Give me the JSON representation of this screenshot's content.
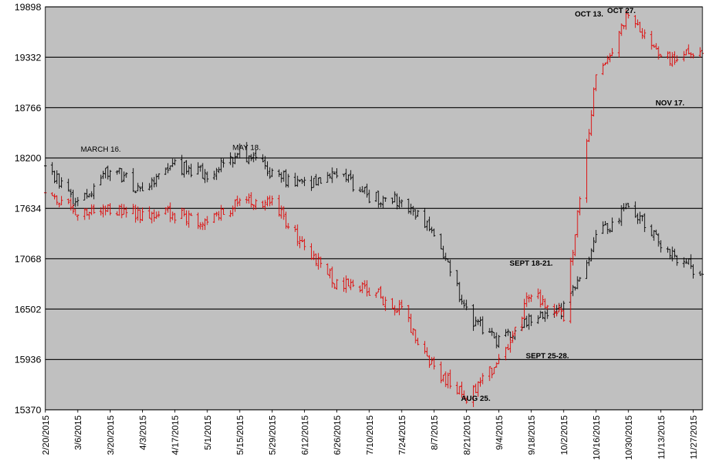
{
  "chart_data": {
    "type": "bar",
    "subtype": "ohlc",
    "title": "",
    "xlabel": "",
    "ylabel": "",
    "ylim": [
      15370,
      19898
    ],
    "y_ticks": [
      "15370",
      "15936",
      "16502",
      "17068",
      "17634",
      "18200",
      "18766",
      "19332",
      "19898"
    ],
    "x_ticks": [
      "2/20/2015",
      "3/6/2015",
      "3/20/2015",
      "4/3/2015",
      "4/17/2015",
      "5/1/2015",
      "5/15/2015",
      "5/29/2015",
      "6/12/2015",
      "6/26/2015",
      "7/10/2015",
      "7/24/2015",
      "8/7/2015",
      "8/21/2015",
      "9/4/2015",
      "9/18/2015",
      "10/2/2015",
      "10/16/2015",
      "10/30/2015",
      "11/13/2015",
      "11/27/2015"
    ],
    "x_range": [
      "2/20/2015",
      "12/1/2015"
    ],
    "grid": {
      "horizontal": true,
      "vertical": false
    },
    "background": "#c0c0c0",
    "series": [
      {
        "color": "#000000",
        "x": [
          "2/20/2015",
          "3/6/2015",
          "3/20/2015",
          "4/3/2015",
          "4/17/2015",
          "5/1/2015",
          "5/15/2015",
          "5/29/2015",
          "6/12/2015",
          "6/26/2015",
          "7/10/2015",
          "7/24/2015",
          "8/7/2015",
          "8/21/2015",
          "9/4/2015",
          "9/18/2015",
          "10/2/2015",
          "10/16/2015",
          "10/30/2015",
          "11/13/2015",
          "11/27/2015"
        ],
        "close": [
          18140,
          17670,
          18090,
          17820,
          18110,
          18020,
          18270,
          18010,
          17900,
          18050,
          17760,
          17720,
          17400,
          16450,
          16140,
          16400,
          16500,
          17300,
          17650,
          17240,
          16950
        ]
      },
      {
        "color": "#e00000",
        "x": [
          "2/20/2015",
          "3/6/2015",
          "3/20/2015",
          "4/3/2015",
          "4/17/2015",
          "5/1/2015",
          "5/15/2015",
          "5/29/2015",
          "6/12/2015",
          "6/26/2015",
          "7/10/2015",
          "7/24/2015",
          "8/7/2015",
          "8/21/2015",
          "9/4/2015",
          "9/18/2015",
          "10/2/2015",
          "10/16/2015",
          "10/30/2015",
          "11/13/2015",
          "11/27/2015"
        ],
        "close": [
          17750,
          17620,
          17640,
          17560,
          17570,
          17460,
          17720,
          17680,
          17220,
          16780,
          16720,
          16500,
          15820,
          15530,
          15890,
          16680,
          16420,
          19100,
          19800,
          19290,
          19380
        ]
      }
    ],
    "annotations": [
      {
        "text": "MARCH 16.",
        "x": "3/16/2015",
        "y": 18270,
        "bold": false
      },
      {
        "text": "MAY 18.",
        "x": "5/18/2015",
        "y": 18290,
        "bold": false
      },
      {
        "text": "OCT 13.",
        "x": "10/13/2015",
        "y": 19790,
        "bold": true
      },
      {
        "text": "OCT 27.",
        "x": "10/27/2015",
        "y": 19830,
        "bold": true
      },
      {
        "text": "NOV 17.",
        "x": "11/17/2015",
        "y": 18790,
        "bold": true
      },
      {
        "text": "SEPT 18-21.",
        "x": "9/18/2015",
        "y": 16990,
        "bold": true
      },
      {
        "text": "SEPT 25-28.",
        "x": "9/25/2015",
        "y": 15950,
        "bold": true
      },
      {
        "text": "AUG 25.",
        "x": "8/25/2015",
        "y": 15470,
        "bold": true
      }
    ]
  }
}
